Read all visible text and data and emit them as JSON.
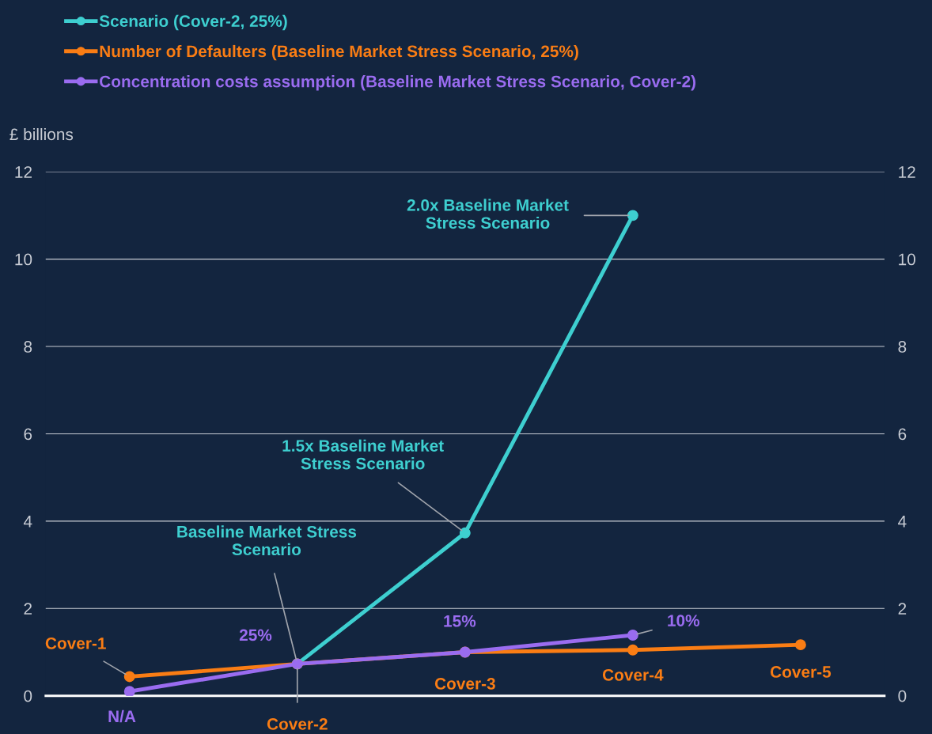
{
  "chart_data": {
    "type": "line",
    "ylabel": "£ billions",
    "categories": [
      null,
      null,
      null,
      null,
      null
    ],
    "series": [
      {
        "name": "Scenario (Cover-2, 25%)",
        "color": "#3ecfd0",
        "values": [
          null,
          0.73,
          3.73,
          11.0,
          null
        ],
        "value_labels": [
          null,
          "Baseline Market Stress Scenario",
          "1.5x Baseline Market Stress Scenario",
          "2.0x Baseline Market Stress Scenario",
          null
        ]
      },
      {
        "name": "Number of Defaulters (Baseline Market Stress Scenario, 25%)",
        "color": "#fa7d14",
        "values": [
          0.44,
          0.73,
          1.0,
          1.05,
          1.17
        ],
        "value_labels": [
          "Cover-1",
          "Cover-2",
          "Cover-3",
          "Cover-4",
          "Cover-5"
        ]
      },
      {
        "name": "Concentration costs assumption (Baseline Market Stress Scenario, Cover-2)",
        "color": "#9a6cf0",
        "values": [
          0.1,
          0.73,
          1.0,
          1.39,
          null
        ],
        "value_labels": [
          "N/A",
          null,
          null,
          null,
          null
        ]
      }
    ],
    "annotations": [
      {
        "text": "25%",
        "y": 0.73
      },
      {
        "text": "15%",
        "y": 1.0
      },
      "10%"
    ],
    "ylim": [
      0,
      12
    ],
    "yticks": [
      0,
      2,
      4,
      6,
      8,
      10,
      12
    ],
    "y2lim": [
      0,
      12
    ],
    "y2ticks": [
      0,
      2,
      4,
      6,
      8,
      10,
      12
    ],
    "grid": "y",
    "legend": "top",
    "marker": "circle",
    "line_style": "solid"
  }
}
